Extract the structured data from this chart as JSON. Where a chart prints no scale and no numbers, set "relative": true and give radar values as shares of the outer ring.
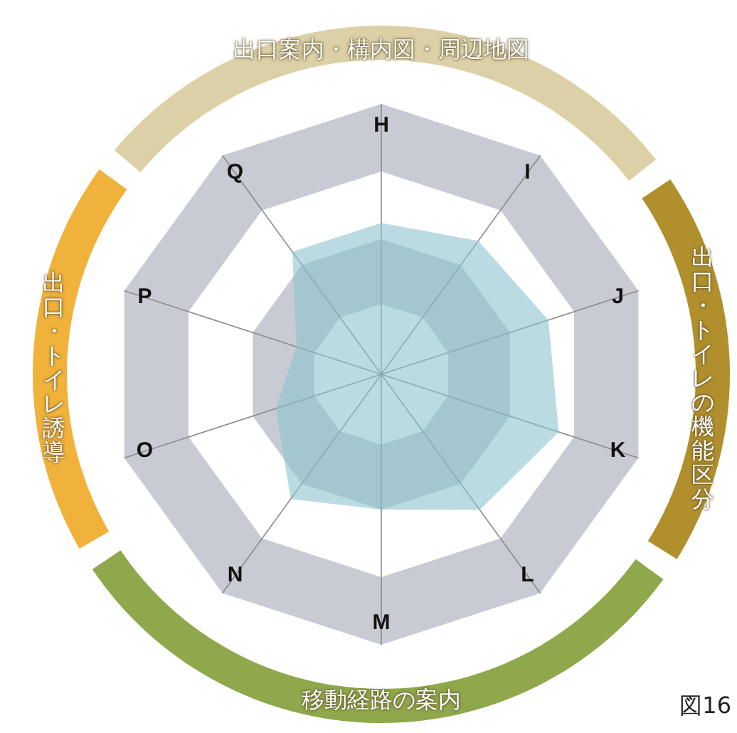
{
  "chart_data": {
    "type": "radar",
    "relative": true,
    "categories": [
      "H",
      "I",
      "J",
      "K",
      "L",
      "M",
      "N",
      "O",
      "P",
      "Q"
    ],
    "series": [
      {
        "color": "#8cc3cd",
        "values": [
          0.56,
          0.61,
          0.65,
          0.69,
          0.62,
          0.5,
          0.57,
          0.41,
          0.33,
          0.56
        ]
      }
    ],
    "marker": "none",
    "legend": false,
    "annotations": [
      "出口案内・構内図・周辺地図",
      "出口・トイレの機能区分",
      "移動経路の案内",
      "出口・トイレ誘導",
      "図16"
    ]
  }
}
